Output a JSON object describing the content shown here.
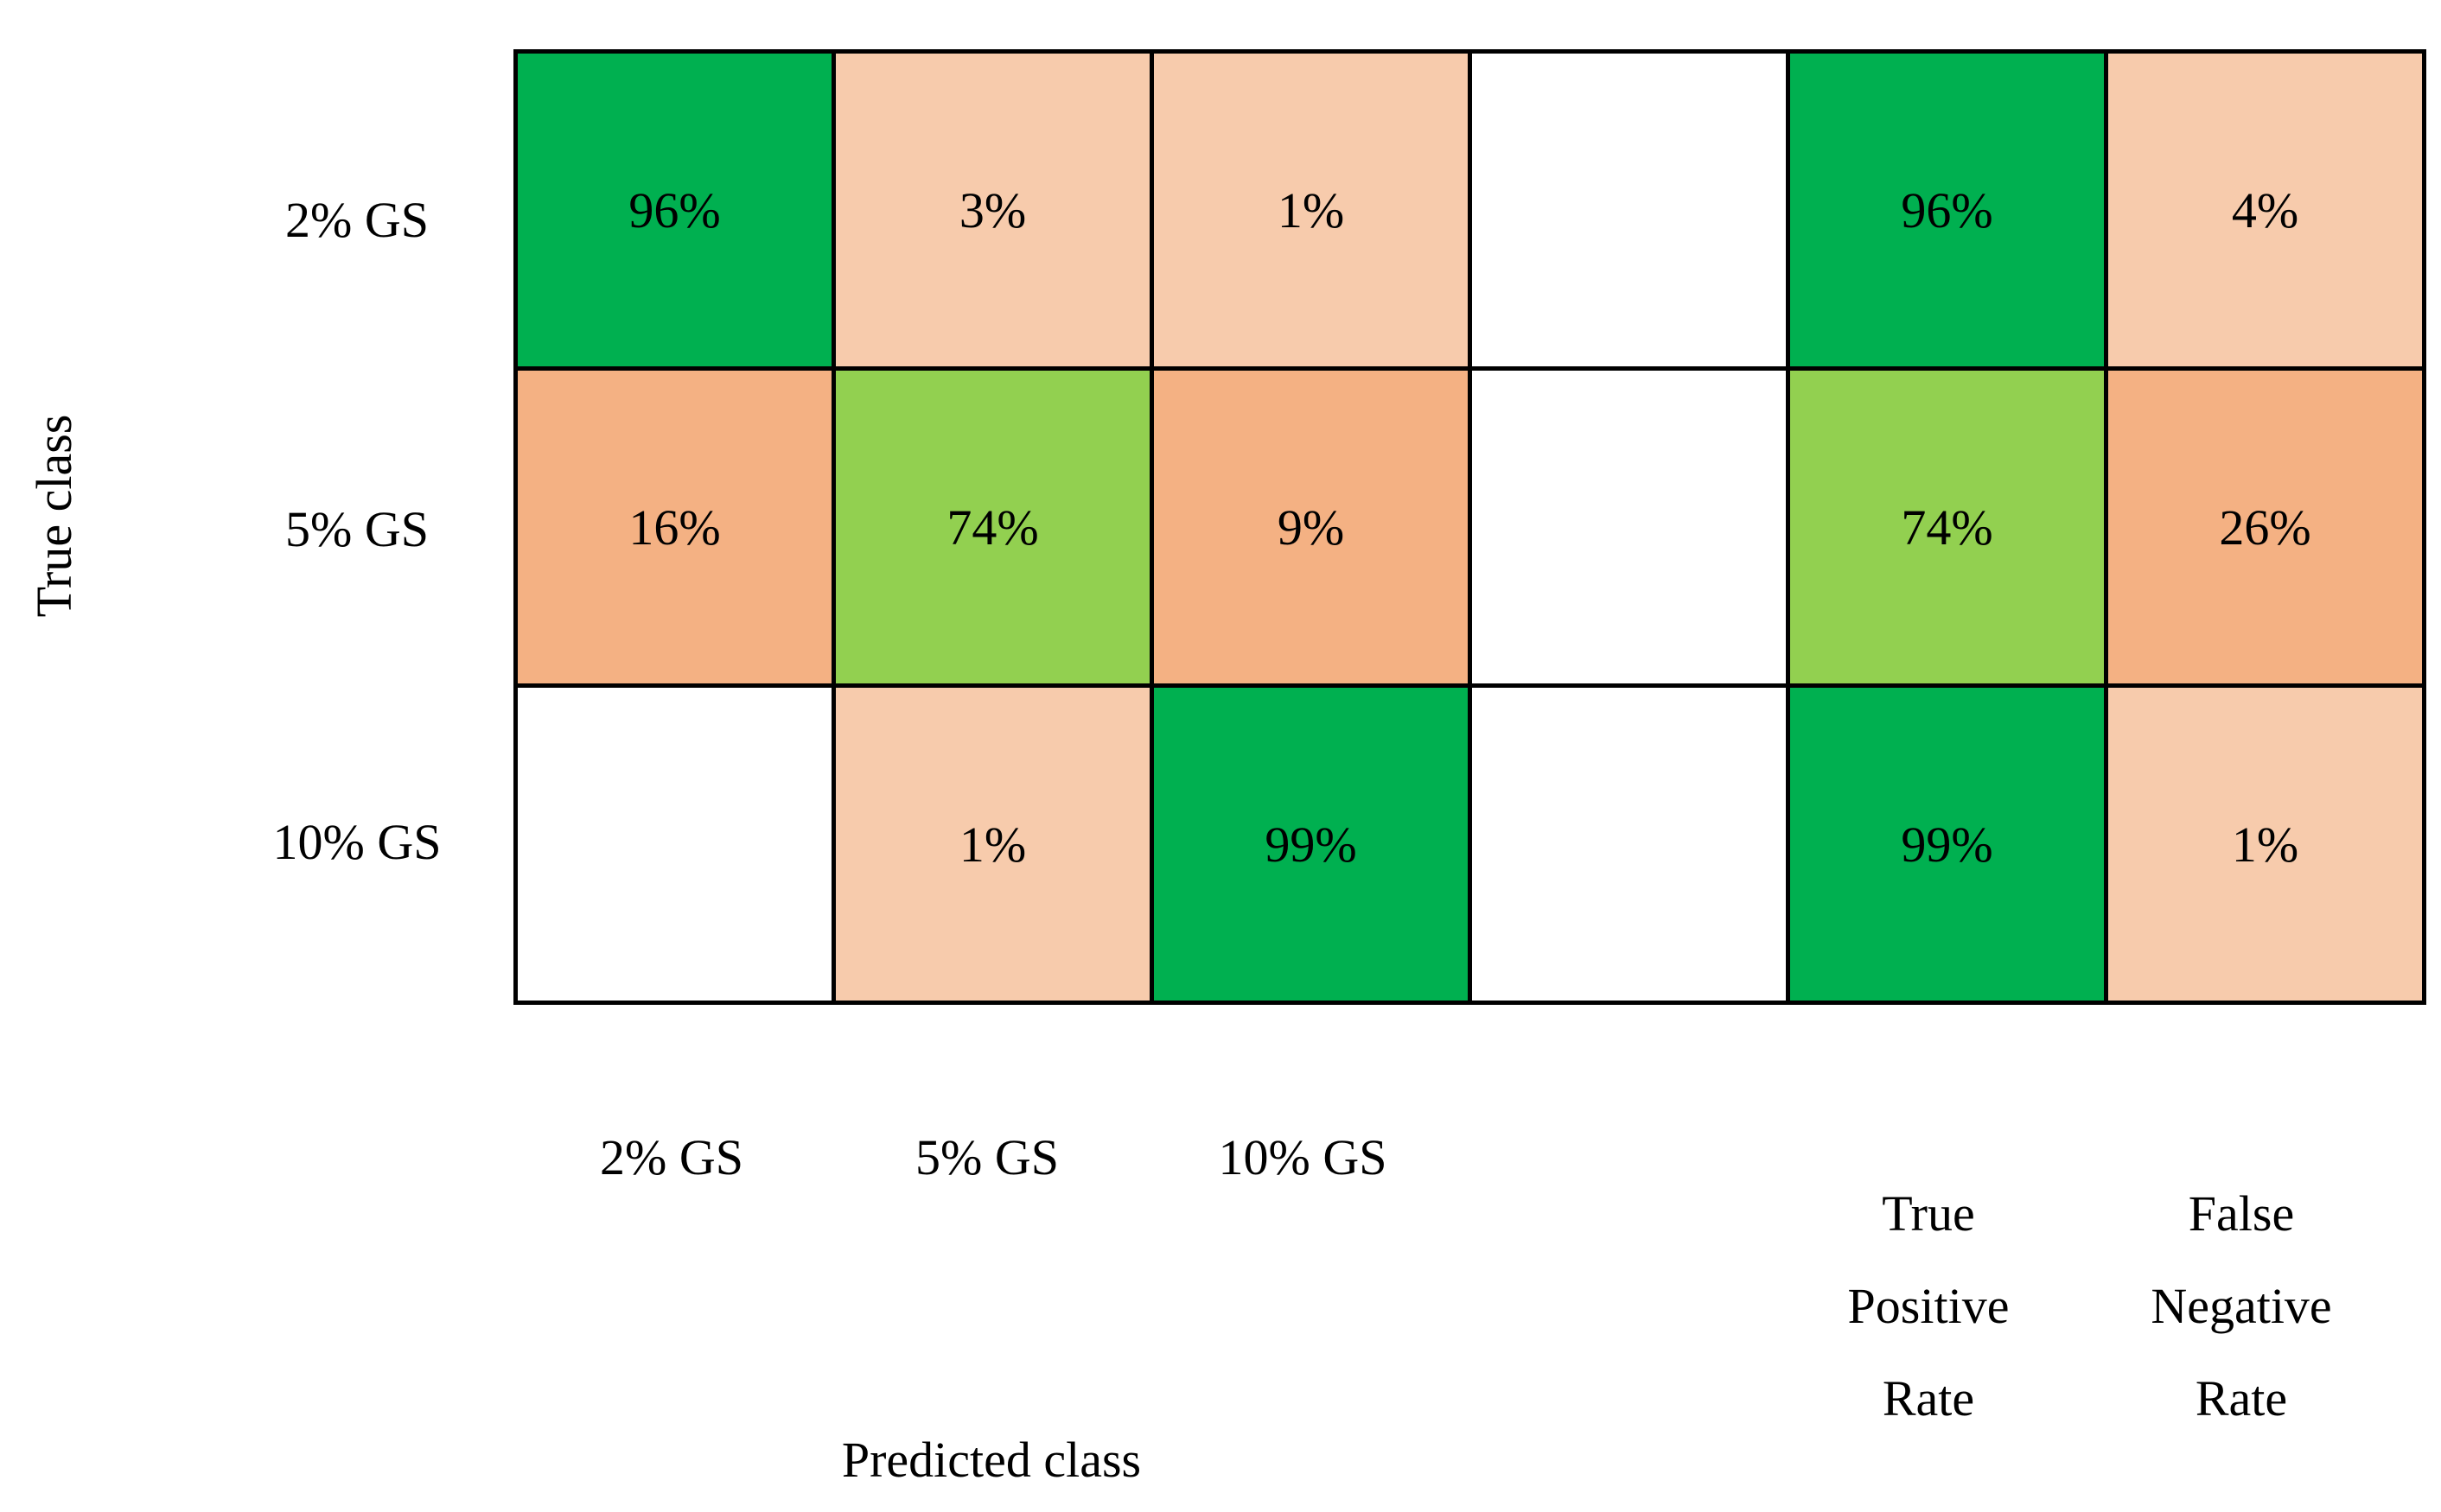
{
  "axes": {
    "true_class_label": "True class",
    "predicted_class_label": "Predicted class"
  },
  "row_labels": [
    "2% GS",
    "5% GS",
    "10% GS"
  ],
  "col_labels": [
    "2% GS",
    "5% GS",
    "10% GS"
  ],
  "rate_col_labels": {
    "tpr": [
      "True",
      "Positive",
      "Rate"
    ],
    "fnr": [
      "False",
      "Negative",
      "Rate"
    ]
  },
  "palette": {
    "strong_green": "#00B050",
    "light_green": "#92D050",
    "medium_orange": "#F4B183",
    "light_orange": "#F7CBAC",
    "empty": "#FFFFFF",
    "border": "#000000"
  },
  "grid": {
    "cells": [
      [
        {
          "label": "96%",
          "color": "#00B050"
        },
        {
          "label": "3%",
          "color": "#F7CBAC"
        },
        {
          "label": "1%",
          "color": "#F7CBAC"
        },
        {
          "label": "",
          "color": "#FFFFFF"
        },
        {
          "label": "96%",
          "color": "#00B050"
        },
        {
          "label": "4%",
          "color": "#F7CBAC"
        }
      ],
      [
        {
          "label": "16%",
          "color": "#F4B183"
        },
        {
          "label": "74%",
          "color": "#92D050"
        },
        {
          "label": "9%",
          "color": "#F4B183"
        },
        {
          "label": "",
          "color": "#FFFFFF"
        },
        {
          "label": "74%",
          "color": "#92D050"
        },
        {
          "label": "26%",
          "color": "#F4B183"
        }
      ],
      [
        {
          "label": "",
          "color": "#FFFFFF"
        },
        {
          "label": "1%",
          "color": "#F7CBAC"
        },
        {
          "label": "99%",
          "color": "#00B050"
        },
        {
          "label": "",
          "color": "#FFFFFF"
        },
        {
          "label": "99%",
          "color": "#00B050"
        },
        {
          "label": "1%",
          "color": "#F7CBAC"
        }
      ]
    ]
  },
  "chart_data": {
    "type": "heatmap",
    "xlabel": "Predicted class",
    "ylabel": "True class",
    "rows": [
      "2% GS",
      "5% GS",
      "10% GS"
    ],
    "columns": [
      "2% GS",
      "5% GS",
      "10% GS"
    ],
    "values_percent": [
      [
        96,
        3,
        1
      ],
      [
        16,
        74,
        9
      ],
      [
        null,
        1,
        99
      ]
    ],
    "true_positive_rate_percent": [
      96,
      74,
      99
    ],
    "false_negative_rate_percent": [
      4,
      26,
      1
    ],
    "extra_columns": [
      "True Positive Rate",
      "False Negative Rate"
    ],
    "legend_position": "none",
    "grid": true
  }
}
